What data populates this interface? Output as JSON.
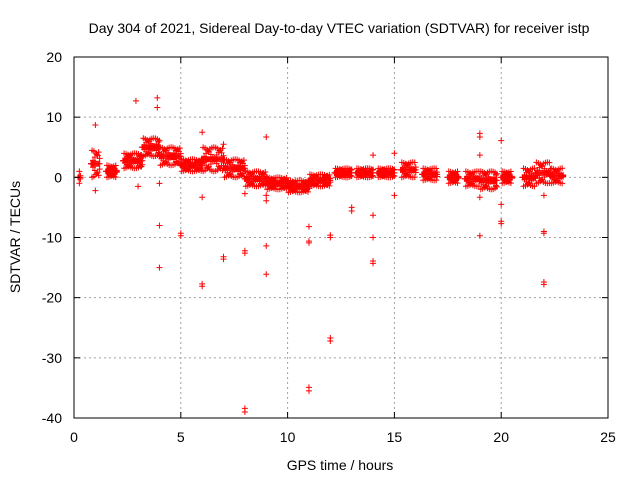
{
  "chart_data": {
    "type": "scatter",
    "title": "Day 304 of 2021, Sidereal Day-to-day VTEC variation (SDTVAR) for receiver istp",
    "xlabel": "GPS time / hours",
    "ylabel": "SDTVAR / TECUs",
    "xlim": [
      0,
      25
    ],
    "ylim": [
      -40,
      20
    ],
    "x_ticks": [
      0,
      5,
      10,
      15,
      20,
      25
    ],
    "y_ticks": [
      -40,
      -30,
      -20,
      -10,
      0,
      10,
      20
    ],
    "grid": true,
    "marker": "plus",
    "series": [
      {
        "name": "SDTVAR",
        "color": "#ff0000",
        "dense_segments": [
          {
            "x": [
              0.2,
              0.3
            ],
            "y": [
              -1.0,
              1.0
            ]
          },
          {
            "x": [
              0.8,
              1.2
            ],
            "y": [
              0.0,
              4.5
            ]
          },
          {
            "x": [
              1.5,
              2.0
            ],
            "y": [
              0.0,
              2.0
            ]
          },
          {
            "x": [
              2.3,
              3.2
            ],
            "y": [
              1.5,
              4.0
            ]
          },
          {
            "x": [
              3.2,
              4.0
            ],
            "y": [
              3.5,
              6.5
            ]
          },
          {
            "x": [
              4.0,
              5.0
            ],
            "y": [
              2.0,
              5.0
            ]
          },
          {
            "x": [
              5.0,
              6.0
            ],
            "y": [
              1.0,
              3.0
            ]
          },
          {
            "x": [
              6.0,
              7.0
            ],
            "y": [
              1.0,
              5.0
            ]
          },
          {
            "x": [
              7.0,
              8.0
            ],
            "y": [
              0.0,
              3.0
            ]
          },
          {
            "x": [
              8.0,
              9.0
            ],
            "y": [
              -1.5,
              1.0
            ]
          },
          {
            "x": [
              9.0,
              10.0
            ],
            "y": [
              -2.0,
              0.0
            ]
          },
          {
            "x": [
              10.0,
              11.0
            ],
            "y": [
              -2.5,
              -0.5
            ]
          },
          {
            "x": [
              11.0,
              12.0
            ],
            "y": [
              -1.5,
              0.5
            ]
          },
          {
            "x": [
              12.2,
              13.0
            ],
            "y": [
              0.0,
              1.5
            ]
          },
          {
            "x": [
              13.2,
              14.0
            ],
            "y": [
              0.0,
              1.5
            ]
          },
          {
            "x": [
              14.2,
              15.0
            ],
            "y": [
              0.0,
              1.5
            ]
          },
          {
            "x": [
              15.3,
              16.0
            ],
            "y": [
              0.0,
              2.5
            ]
          },
          {
            "x": [
              16.3,
              17.0
            ],
            "y": [
              -0.5,
              1.5
            ]
          },
          {
            "x": [
              17.5,
              18.0
            ],
            "y": [
              -1.0,
              1.0
            ]
          },
          {
            "x": [
              18.3,
              19.0
            ],
            "y": [
              -1.5,
              1.0
            ]
          },
          {
            "x": [
              19.0,
              19.8
            ],
            "y": [
              -2.0,
              1.0
            ]
          },
          {
            "x": [
              20.0,
              20.5
            ],
            "y": [
              -1.0,
              1.0
            ]
          },
          {
            "x": [
              21.0,
              21.6
            ],
            "y": [
              -1.5,
              1.5
            ]
          },
          {
            "x": [
              21.6,
              22.3
            ],
            "y": [
              -1.0,
              2.5
            ]
          },
          {
            "x": [
              22.3,
              22.9
            ],
            "y": [
              -1.0,
              1.5
            ]
          }
        ],
        "points": [
          {
            "x": 1.0,
            "y": 8.7
          },
          {
            "x": 1.0,
            "y": -2.2
          },
          {
            "x": 2.9,
            "y": 12.7
          },
          {
            "x": 3.0,
            "y": -1.5
          },
          {
            "x": 3.9,
            "y": 13.2
          },
          {
            "x": 3.9,
            "y": 11.6
          },
          {
            "x": 4.0,
            "y": -1.0
          },
          {
            "x": 4.0,
            "y": -8.0
          },
          {
            "x": 4.0,
            "y": -15.0
          },
          {
            "x": 5.0,
            "y": -9.3
          },
          {
            "x": 5.0,
            "y": -9.7
          },
          {
            "x": 6.0,
            "y": 7.5
          },
          {
            "x": 6.0,
            "y": -3.3
          },
          {
            "x": 6.0,
            "y": -17.7
          },
          {
            "x": 6.0,
            "y": -18.1
          },
          {
            "x": 7.0,
            "y": 5.5
          },
          {
            "x": 7.0,
            "y": -13.2
          },
          {
            "x": 7.0,
            "y": -13.6
          },
          {
            "x": 8.0,
            "y": -2.7
          },
          {
            "x": 8.0,
            "y": -12.2
          },
          {
            "x": 8.0,
            "y": -12.6
          },
          {
            "x": 8.0,
            "y": -38.4
          },
          {
            "x": 8.0,
            "y": -39.0
          },
          {
            "x": 9.0,
            "y": 6.7
          },
          {
            "x": 9.0,
            "y": -3.0
          },
          {
            "x": 9.0,
            "y": -3.9
          },
          {
            "x": 9.0,
            "y": -11.4
          },
          {
            "x": 9.0,
            "y": -16.1
          },
          {
            "x": 11.0,
            "y": -8.2
          },
          {
            "x": 11.0,
            "y": -10.6
          },
          {
            "x": 11.0,
            "y": -10.9
          },
          {
            "x": 11.0,
            "y": -34.9
          },
          {
            "x": 11.0,
            "y": -35.5
          },
          {
            "x": 12.0,
            "y": -9.6
          },
          {
            "x": 12.0,
            "y": -10.0
          },
          {
            "x": 12.0,
            "y": -26.7
          },
          {
            "x": 12.0,
            "y": -27.2
          },
          {
            "x": 13.0,
            "y": -5.0
          },
          {
            "x": 13.0,
            "y": -5.6
          },
          {
            "x": 14.0,
            "y": 3.7
          },
          {
            "x": 14.0,
            "y": -6.3
          },
          {
            "x": 14.0,
            "y": -10.0
          },
          {
            "x": 14.0,
            "y": -13.9
          },
          {
            "x": 14.0,
            "y": -14.3
          },
          {
            "x": 15.0,
            "y": 4.0
          },
          {
            "x": 15.0,
            "y": -3.0
          },
          {
            "x": 19.0,
            "y": 7.3
          },
          {
            "x": 19.0,
            "y": 6.7
          },
          {
            "x": 19.0,
            "y": 3.7
          },
          {
            "x": 19.0,
            "y": -3.3
          },
          {
            "x": 19.0,
            "y": -9.7
          },
          {
            "x": 20.0,
            "y": 6.1
          },
          {
            "x": 20.0,
            "y": -4.5
          },
          {
            "x": 20.0,
            "y": -7.3
          },
          {
            "x": 20.0,
            "y": -7.7
          },
          {
            "x": 22.0,
            "y": -3.0
          },
          {
            "x": 22.0,
            "y": -9.0
          },
          {
            "x": 22.0,
            "y": -9.3
          },
          {
            "x": 22.0,
            "y": -17.4
          },
          {
            "x": 22.0,
            "y": -17.8
          }
        ]
      }
    ]
  }
}
